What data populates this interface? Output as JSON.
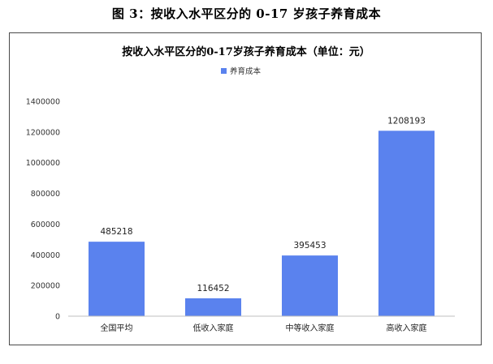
{
  "caption": "图 3：按收入水平区分的 0-17 岁孩子养育成本",
  "colors": {
    "bar": "#5a82ee",
    "axis": "#bfbfbf"
  },
  "chart_data": {
    "type": "bar",
    "title": "按收入水平区分的0-17岁孩子养育成本（单位：元）",
    "legend": {
      "label": "养育成本",
      "position": "top"
    },
    "categories": [
      "全国平均",
      "低收入家庭",
      "中等收入家庭",
      "高收入家庭"
    ],
    "values": [
      485218,
      116452,
      395453,
      1208193
    ],
    "ylim": [
      0,
      1400000
    ],
    "yticks": [
      0,
      200000,
      400000,
      600000,
      800000,
      1000000,
      1200000,
      1400000
    ],
    "grid": false
  }
}
